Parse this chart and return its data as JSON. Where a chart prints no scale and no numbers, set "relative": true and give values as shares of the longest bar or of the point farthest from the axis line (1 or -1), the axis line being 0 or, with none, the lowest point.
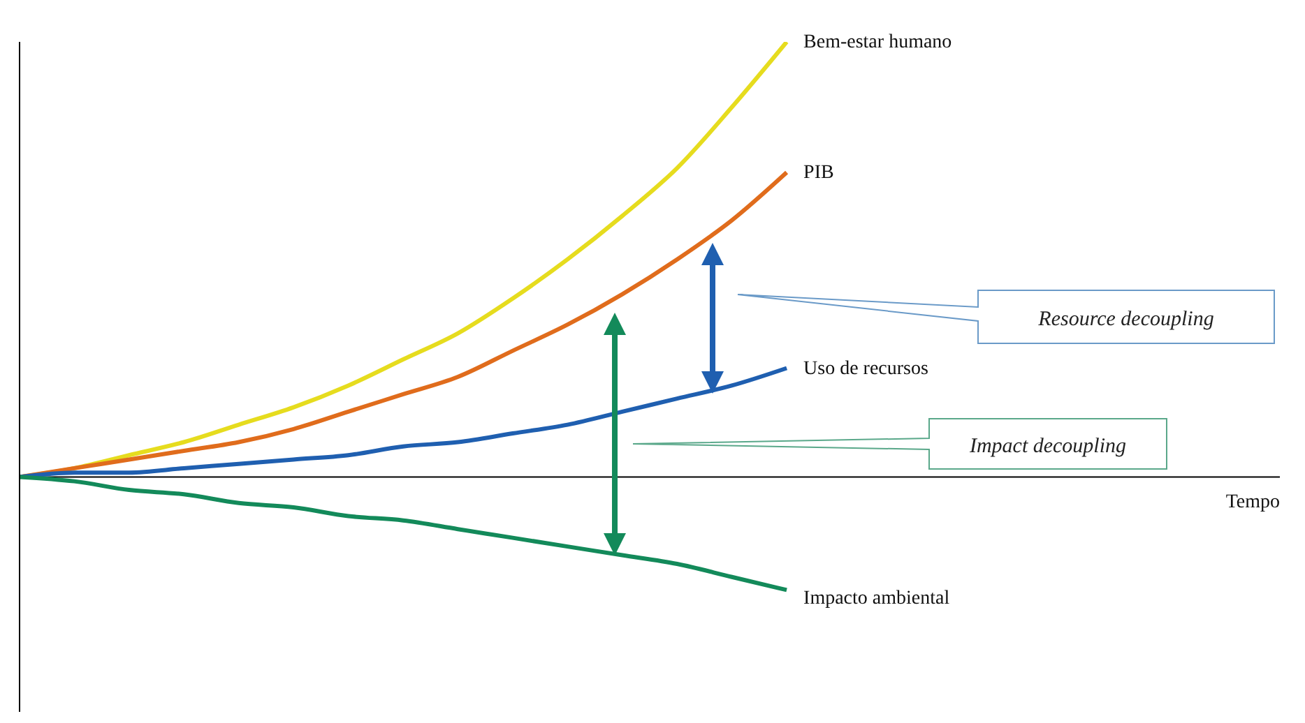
{
  "chart_data": {
    "type": "line",
    "relative": true,
    "xlabel": "Tempo",
    "categories": [
      null,
      null,
      null,
      null,
      null,
      null,
      null,
      null,
      null,
      null,
      null,
      null,
      null,
      null,
      null,
      null,
      null,
      null,
      null,
      null,
      null,
      null,
      null,
      null
    ],
    "series": [
      {
        "name": "Bem-estar humano",
        "color": "#e6dc1e",
        "values": [
          0,
          0.02,
          0.05,
          0.08,
          0.12,
          0.16,
          0.21,
          0.27,
          0.33,
          0.41,
          0.5,
          0.6,
          0.71,
          0.85,
          1,
          null,
          null,
          null,
          null,
          null,
          null,
          null,
          null,
          null
        ]
      },
      {
        "name": "PIB",
        "color": "#e06c1c",
        "values": [
          0,
          0.02,
          0.04,
          0.06,
          0.08,
          0.11,
          0.15,
          0.19,
          0.23,
          0.29,
          0.35,
          0.42,
          0.5,
          0.59,
          0.7,
          null,
          null,
          null,
          null,
          null,
          null,
          null,
          null,
          null
        ]
      },
      {
        "name": "Uso de recursos",
        "color": "#1f5fb0",
        "values": [
          0,
          0.01,
          0.01,
          0.02,
          0.03,
          0.04,
          0.05,
          0.07,
          0.08,
          0.1,
          0.12,
          0.15,
          0.18,
          0.21,
          0.25,
          null,
          null,
          null,
          null,
          null,
          null,
          null,
          null,
          null
        ]
      },
      {
        "name": "Impacto ambiental",
        "color": "#138a5a",
        "values": [
          0,
          -0.01,
          -0.03,
          -0.04,
          -0.06,
          -0.07,
          -0.09,
          -0.1,
          -0.12,
          -0.14,
          -0.16,
          -0.18,
          -0.2,
          -0.23,
          -0.26,
          null,
          null,
          null,
          null,
          null,
          null,
          null,
          null,
          null
        ]
      }
    ],
    "annotations": [
      "Resource decoupling",
      "Impact decoupling"
    ],
    "grid": false,
    "legend": false,
    "marker": "none",
    "line_style": "solid"
  }
}
